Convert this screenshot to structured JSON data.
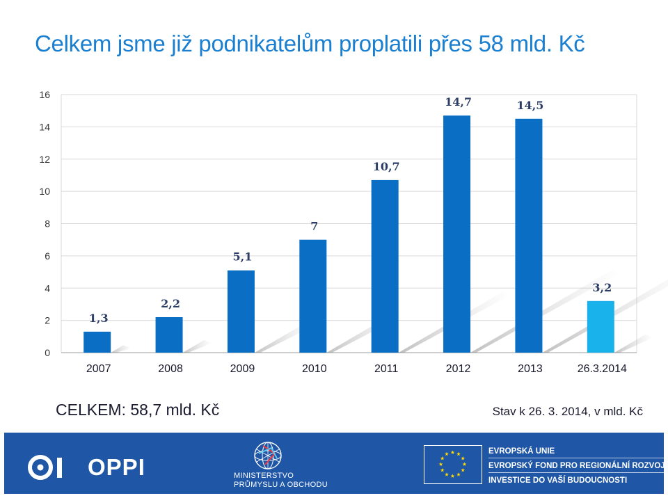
{
  "title": "Celkem jsme již podnikatelům proplatili přes 58 mld. Kč",
  "chart_data": {
    "type": "bar",
    "categories": [
      "2007",
      "2008",
      "2009",
      "2010",
      "2011",
      "2012",
      "2013",
      "26.3.2014"
    ],
    "values": [
      1.3,
      2.2,
      5.1,
      7,
      10.7,
      14.7,
      14.5,
      3.2
    ],
    "value_labels": [
      "1,3",
      "2,2",
      "5,1",
      "7",
      "10,7",
      "14,7",
      "14,5",
      "3,2"
    ],
    "highlight_index": 7,
    "ylim": [
      0,
      16
    ],
    "yticks": [
      0,
      2,
      4,
      6,
      8,
      10,
      12,
      14,
      16
    ],
    "grid": true,
    "title": "Celkem jsme již podnikatelům proplatili přes 58 mld. Kč",
    "xlabel": "",
    "ylabel": ""
  },
  "colors": {
    "bar": "#0a6fc4",
    "bar_highlight": "#1ab2ea",
    "title": "#1a7fd0",
    "footer": "#1f56a5",
    "grid": "#d9d9d9"
  },
  "summary": {
    "total": "CELKEM: 58,7 mld. Kč",
    "as_of": "Stav k 26. 3. 2014, v mld. Kč"
  },
  "footer": {
    "oppi_label": "OPPI",
    "oppi_icon": "oppi-logo-icon",
    "ministry_icon": "ministry-globe-icon",
    "ministry_line1": "MINISTERSTVO",
    "ministry_line2": "PRŮMYSLU A OBCHODU",
    "eu_icon": "eu-flag-icon",
    "eu_line1": "EVROPSKÁ UNIE",
    "eu_line2": "EVROPSKÝ FOND PRO REGIONÁLNÍ ROZVOJ",
    "eu_line3": "INVESTICE DO VAŠÍ BUDOUCNOSTI"
  }
}
